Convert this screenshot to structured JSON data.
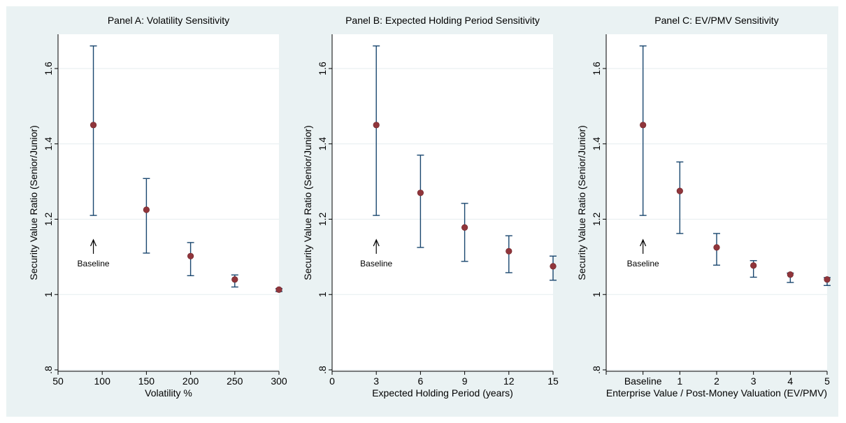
{
  "chart_data": [
    {
      "type": "scatter",
      "title": "Panel A: Volatility Sensitivity",
      "xlabel": "Volatility %",
      "ylabel": "Security Value Ratio (Senior/Junior)",
      "xlim": [
        50,
        300
      ],
      "ylim": [
        0.8,
        1.65
      ],
      "x_ticks": [
        50,
        100,
        150,
        200,
        250,
        300
      ],
      "x_tick_labels": [
        "50",
        "100",
        "150",
        "200",
        "250",
        "300"
      ],
      "y_ticks": [
        0.8,
        1.0,
        1.2,
        1.4,
        1.6
      ],
      "y_tick_labels": [
        ".8",
        "1",
        "1.2",
        "1.4",
        "1.6"
      ],
      "grid": "horizontal",
      "points": [
        {
          "x": 90,
          "y": 1.45,
          "low": 1.21,
          "high": 1.66
        },
        {
          "x": 150,
          "y": 1.225,
          "low": 1.11,
          "high": 1.308
        },
        {
          "x": 200,
          "y": 1.102,
          "low": 1.05,
          "high": 1.138
        },
        {
          "x": 250,
          "y": 1.04,
          "low": 1.02,
          "high": 1.052
        },
        {
          "x": 300,
          "y": 1.013,
          "low": 1.008,
          "high": 1.016
        }
      ],
      "annotation": {
        "text": "Baseline",
        "x": 90
      }
    },
    {
      "type": "scatter",
      "title": "Panel B: Expected Holding Period Sensitivity",
      "xlabel": "Expected Holding Period (years)",
      "ylabel": "Security Value Ratio (Senior/Junior)",
      "xlim": [
        0,
        15
      ],
      "ylim": [
        0.8,
        1.65
      ],
      "x_ticks": [
        0,
        3,
        6,
        9,
        12,
        15
      ],
      "x_tick_labels": [
        "0",
        "3",
        "6",
        "9",
        "12",
        "15"
      ],
      "y_ticks": [
        0.8,
        1.0,
        1.2,
        1.4,
        1.6
      ],
      "y_tick_labels": [
        ".8",
        "1",
        "1.2",
        "1.4",
        "1.6"
      ],
      "grid": "horizontal",
      "points": [
        {
          "x": 3,
          "y": 1.45,
          "low": 1.21,
          "high": 1.66
        },
        {
          "x": 6,
          "y": 1.27,
          "low": 1.125,
          "high": 1.37
        },
        {
          "x": 9,
          "y": 1.178,
          "low": 1.088,
          "high": 1.242
        },
        {
          "x": 12,
          "y": 1.115,
          "low": 1.058,
          "high": 1.156
        },
        {
          "x": 15,
          "y": 1.075,
          "low": 1.038,
          "high": 1.102
        }
      ],
      "annotation": {
        "text": "Baseline",
        "x": 3
      }
    },
    {
      "type": "scatter",
      "title": "Panel C: EV/PMV Sensitivity",
      "xlabel": "Enterprise Value / Post-Money Valuation (EV/PMV)",
      "ylabel": "Security Value Ratio (Senior/Junior)",
      "xlim": [
        -1,
        5
      ],
      "ylim": [
        0.8,
        1.65
      ],
      "x_ticks": [
        -1,
        0,
        1,
        2,
        3,
        4,
        5
      ],
      "x_tick_labels": [
        "",
        "Baseline",
        "1",
        "2",
        "3",
        "4",
        "5"
      ],
      "y_ticks": [
        0.8,
        1.0,
        1.2,
        1.4,
        1.6
      ],
      "y_tick_labels": [
        ".8",
        "1",
        "1.2",
        "1.4",
        "1.6"
      ],
      "grid": "horizontal",
      "points": [
        {
          "x": 0,
          "y": 1.45,
          "low": 1.21,
          "high": 1.66
        },
        {
          "x": 1,
          "y": 1.275,
          "low": 1.162,
          "high": 1.352
        },
        {
          "x": 2,
          "y": 1.125,
          "low": 1.078,
          "high": 1.162
        },
        {
          "x": 3,
          "y": 1.077,
          "low": 1.046,
          "high": 1.09
        },
        {
          "x": 4,
          "y": 1.053,
          "low": 1.032,
          "high": 1.057
        },
        {
          "x": 5,
          "y": 1.04,
          "low": 1.024,
          "high": 1.045
        }
      ],
      "annotation": {
        "text": "Baseline",
        "x": 0
      }
    }
  ],
  "colors": {
    "background": "#eaf2f3",
    "plot_region": "#ffffff",
    "grid": "#e6eeef",
    "axis": "#000000",
    "error_bar": "#1a476f",
    "marker": "#90353b",
    "marker_edge": "#6d2428"
  }
}
